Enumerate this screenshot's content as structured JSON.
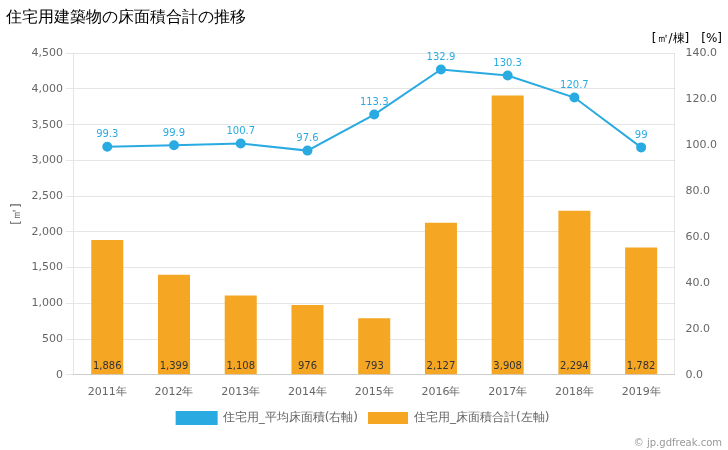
{
  "chart_data": {
    "type": "bar",
    "title": "住宅用建築物の床面積合計の推移",
    "categories": [
      "2011年",
      "2012年",
      "2013年",
      "2014年",
      "2015年",
      "2016年",
      "2017年",
      "2018年",
      "2019年"
    ],
    "ylabel": "[㎡]",
    "annotations": [
      "[㎡/棟]",
      "[%]",
      "© jp.gdfreak.com"
    ],
    "series": [
      {
        "name": "住宅用_床面積合計(左軸)",
        "type": "bar",
        "color": "#f5a623",
        "values": [
          1886,
          1399,
          1108,
          976,
          793,
          2127,
          3908,
          2294,
          1782
        ],
        "value_labels": [
          "1,886",
          "1,399",
          "1,108",
          "976",
          "793",
          "2,127",
          "3,908",
          "2,294",
          "1,782"
        ]
      },
      {
        "name": "住宅用_平均床面積(右軸)",
        "type": "line",
        "axis": "y2",
        "color": "#29abe2",
        "marker": "circle",
        "line_style": "solid",
        "values": [
          99.3,
          99.9,
          100.7,
          97.6,
          113.3,
          132.9,
          130.3,
          120.7,
          99
        ]
      }
    ],
    "ylim": [
      0,
      4500
    ],
    "yticks": [
      0,
      500,
      {
        "value": 1000,
        "label": "1,000"
      },
      {
        "value": 1500,
        "label": "1,500"
      },
      {
        "value": 2000,
        "label": "2,000"
      },
      {
        "value": 2500,
        "label": "2,500"
      },
      {
        "value": 3000,
        "label": "3,000"
      },
      {
        "value": 3500,
        "label": "3,500"
      },
      {
        "value": 4000,
        "label": "4,000"
      },
      {
        "value": 4500,
        "label": "4,500"
      }
    ],
    "y2lim": [
      0,
      140
    ],
    "y2ticks": [
      {
        "value": 0,
        "label": "0.0"
      },
      {
        "value": 20,
        "label": "20.0"
      },
      {
        "value": 40,
        "label": "40.0"
      },
      {
        "value": 60,
        "label": "60.0"
      },
      {
        "value": 80,
        "label": "80.0"
      },
      {
        "value": 100,
        "label": "100.0"
      },
      {
        "value": 120,
        "label": "120.0"
      },
      {
        "value": 140,
        "label": "140.0"
      }
    ],
    "grid": true,
    "legend": "bottom",
    "data_labels": true
  }
}
